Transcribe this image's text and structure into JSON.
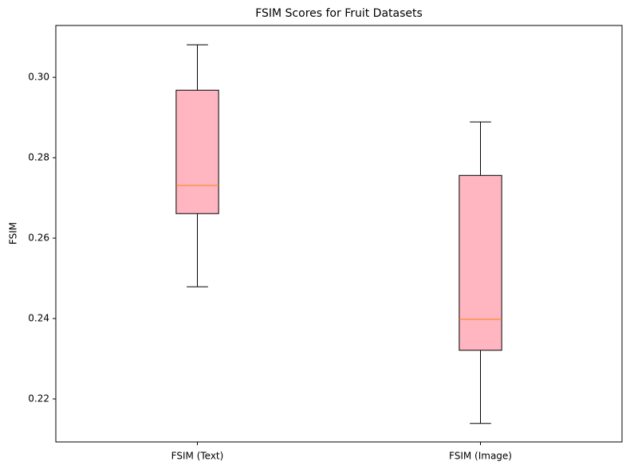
{
  "chart_data": {
    "type": "box",
    "title": "FSIM Scores for Fruit Datasets",
    "y_label": "FSIM",
    "categories": [
      "FSIM (Text)",
      "FSIM (Image)"
    ],
    "stats": [
      {
        "low": 0.2479,
        "q1": 0.2661,
        "median": 0.2731,
        "q3": 0.2968,
        "high": 0.3081
      },
      {
        "low": 0.2139,
        "q1": 0.2321,
        "median": 0.2398,
        "q3": 0.2756,
        "high": 0.2889
      }
    ],
    "box_color": "#ffb6c1",
    "median_color": "#ff7f0e",
    "ylim": [
      0.2093,
      0.3129
    ],
    "yticks": [
      {
        "value": 0.22,
        "label": "0.22"
      },
      {
        "value": 0.24,
        "label": "0.24"
      },
      {
        "value": 0.26,
        "label": "0.26"
      },
      {
        "value": 0.28,
        "label": "0.28"
      },
      {
        "value": 0.3,
        "label": "0.30"
      }
    ],
    "grid": false
  }
}
